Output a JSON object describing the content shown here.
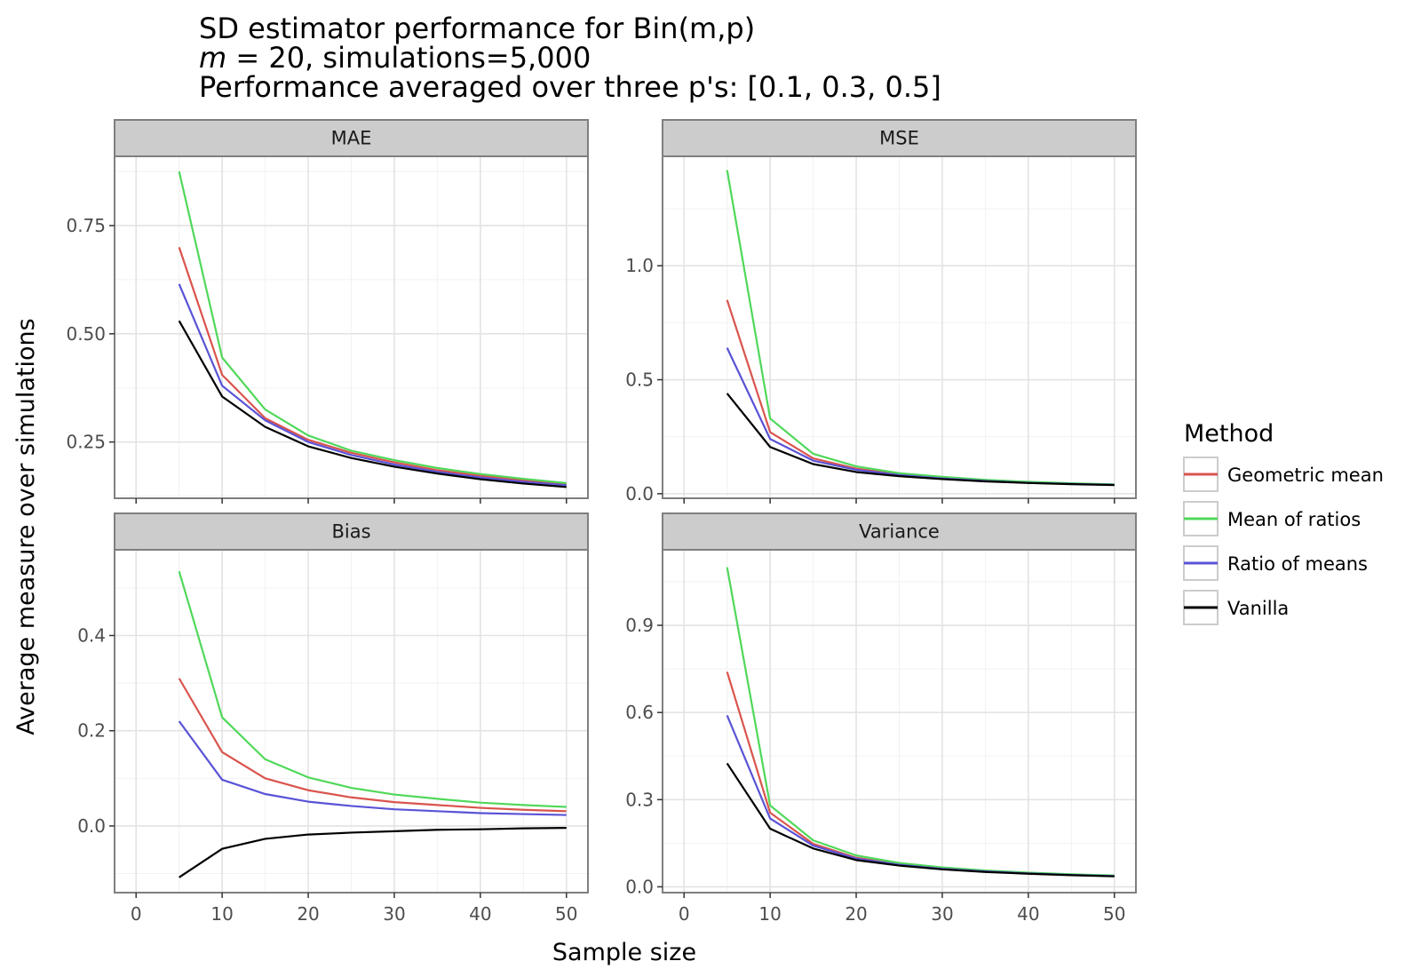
{
  "chart_data": {
    "type": "line",
    "title_lines": [
      "SD estimator performance for Bin(m,p)",
      "m = 20, simulations=5,000",
      "Performance averaged over three p's: [0.1, 0.3, 0.5]"
    ],
    "title_var": "m",
    "title_rest": " = 20, simulations=5,000",
    "xlabel": "Sample size",
    "ylabel": "Average measure over simulations",
    "legend_title": "Method",
    "x": [
      5,
      10,
      15,
      20,
      25,
      30,
      35,
      40,
      45,
      50
    ],
    "xlim": [
      -2.5,
      52.5
    ],
    "xticks": [
      0,
      10,
      20,
      30,
      40,
      50
    ],
    "xtick_labels": [
      "0",
      "10",
      "20",
      "30",
      "40",
      "50"
    ],
    "methods": [
      {
        "name": "Geometric mean",
        "color": "#d9544d"
      },
      {
        "name": "Mean of ratios",
        "color": "#50d85a"
      },
      {
        "name": "Ratio of means",
        "color": "#5a53d6"
      },
      {
        "name": "Vanilla",
        "color": "#000000"
      }
    ],
    "facets": [
      {
        "name": "MAE",
        "ylim": [
          0.12,
          0.91
        ],
        "yticks": [
          0.25,
          0.5,
          0.75
        ],
        "ytick_labels": [
          "0.25",
          "0.50",
          "0.75"
        ],
        "series": [
          {
            "name": "Geometric mean",
            "values": [
              0.7,
              0.405,
              0.305,
              0.255,
              0.225,
              0.203,
              0.185,
              0.172,
              0.162,
              0.153
            ]
          },
          {
            "name": "Mean of ratios",
            "values": [
              0.875,
              0.445,
              0.325,
              0.265,
              0.23,
              0.208,
              0.19,
              0.176,
              0.165,
              0.155
            ]
          },
          {
            "name": "Ratio of means",
            "values": [
              0.615,
              0.38,
              0.3,
              0.25,
              0.22,
              0.198,
              0.181,
              0.168,
              0.158,
              0.15
            ]
          },
          {
            "name": "Vanilla",
            "values": [
              0.53,
              0.355,
              0.285,
              0.24,
              0.213,
              0.193,
              0.177,
              0.164,
              0.154,
              0.146
            ]
          }
        ]
      },
      {
        "name": "MSE",
        "ylim": [
          -0.02,
          1.48
        ],
        "yticks": [
          0.0,
          0.5,
          1.0
        ],
        "ytick_labels": [
          "0.0",
          "0.5",
          "1.0"
        ],
        "series": [
          {
            "name": "Geometric mean",
            "values": [
              0.85,
              0.27,
              0.155,
              0.11,
              0.085,
              0.07,
              0.058,
              0.05,
              0.044,
              0.04
            ]
          },
          {
            "name": "Mean of ratios",
            "values": [
              1.42,
              0.33,
              0.175,
              0.12,
              0.09,
              0.074,
              0.061,
              0.052,
              0.046,
              0.041
            ]
          },
          {
            "name": "Ratio of means",
            "values": [
              0.64,
              0.24,
              0.145,
              0.105,
              0.082,
              0.067,
              0.056,
              0.048,
              0.043,
              0.039
            ]
          },
          {
            "name": "Vanilla",
            "values": [
              0.44,
              0.205,
              0.13,
              0.095,
              0.077,
              0.064,
              0.054,
              0.047,
              0.042,
              0.038
            ]
          }
        ]
      },
      {
        "name": "Bias",
        "ylim": [
          -0.14,
          0.58
        ],
        "yticks": [
          0.0,
          0.2,
          0.4
        ],
        "ytick_labels": [
          "0.0",
          "0.2",
          "0.4"
        ],
        "series": [
          {
            "name": "Geometric mean",
            "values": [
              0.31,
              0.155,
              0.1,
              0.075,
              0.06,
              0.05,
              0.044,
              0.038,
              0.034,
              0.031
            ]
          },
          {
            "name": "Mean of ratios",
            "values": [
              0.535,
              0.228,
              0.14,
              0.102,
              0.08,
              0.066,
              0.057,
              0.049,
              0.044,
              0.04
            ]
          },
          {
            "name": "Ratio of means",
            "values": [
              0.22,
              0.097,
              0.067,
              0.051,
              0.042,
              0.035,
              0.031,
              0.027,
              0.025,
              0.023
            ]
          },
          {
            "name": "Vanilla",
            "values": [
              -0.108,
              -0.048,
              -0.027,
              -0.018,
              -0.014,
              -0.011,
              -0.008,
              -0.007,
              -0.005,
              -0.004
            ]
          }
        ]
      },
      {
        "name": "Variance",
        "ylim": [
          -0.02,
          1.16
        ],
        "yticks": [
          0.0,
          0.3,
          0.6,
          0.9
        ],
        "ytick_labels": [
          "0.0",
          "0.3",
          "0.6",
          "0.9"
        ],
        "series": [
          {
            "name": "Geometric mean",
            "values": [
              0.74,
              0.255,
              0.148,
              0.1,
              0.078,
              0.064,
              0.054,
              0.047,
              0.042,
              0.038
            ]
          },
          {
            "name": "Mean of ratios",
            "values": [
              1.1,
              0.28,
              0.16,
              0.108,
              0.082,
              0.067,
              0.056,
              0.049,
              0.043,
              0.039
            ]
          },
          {
            "name": "Ratio of means",
            "values": [
              0.59,
              0.235,
              0.142,
              0.097,
              0.076,
              0.062,
              0.053,
              0.046,
              0.041,
              0.037
            ]
          },
          {
            "name": "Vanilla",
            "values": [
              0.425,
              0.2,
              0.132,
              0.092,
              0.073,
              0.06,
              0.051,
              0.045,
              0.04,
              0.036
            ]
          }
        ]
      }
    ]
  }
}
